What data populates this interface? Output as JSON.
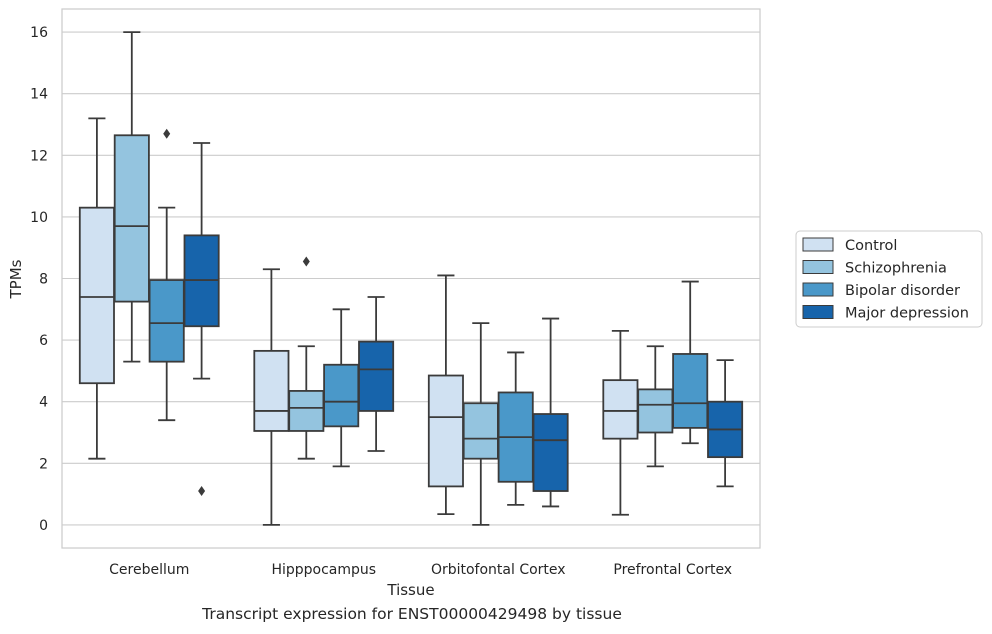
{
  "caption": "Transcript expression for ENST00000429498 by tissue",
  "chart_data": {
    "type": "box",
    "title": "",
    "xlabel": "Tissue",
    "ylabel": "TPMs",
    "categories": [
      "Cerebellum",
      "Hipppocampus",
      "Orbitofontal Cortex",
      "Prefrontal Cortex"
    ],
    "ylim": [
      -0.75,
      16.75
    ],
    "yticks": [
      0,
      2,
      4,
      6,
      8,
      10,
      12,
      14,
      16
    ],
    "grid": true,
    "legend_position": "right",
    "series": [
      {
        "name": "Control",
        "color": "#d0e1f2",
        "boxes": [
          {
            "whislo": 2.15,
            "q1": 4.6,
            "med": 7.4,
            "q3": 10.3,
            "whishi": 13.2,
            "fliers": []
          },
          {
            "whislo": 0.0,
            "q1": 3.05,
            "med": 3.7,
            "q3": 5.65,
            "whishi": 8.3,
            "fliers": []
          },
          {
            "whislo": 0.35,
            "q1": 1.25,
            "med": 3.5,
            "q3": 4.85,
            "whishi": 8.1,
            "fliers": []
          },
          {
            "whislo": 0.33,
            "q1": 2.8,
            "med": 3.7,
            "q3": 4.7,
            "whishi": 6.3,
            "fliers": []
          }
        ]
      },
      {
        "name": "Schizophrenia",
        "color": "#94c4df",
        "boxes": [
          {
            "whislo": 5.3,
            "q1": 7.25,
            "med": 9.7,
            "q3": 12.65,
            "whishi": 16.0,
            "fliers": []
          },
          {
            "whislo": 2.15,
            "q1": 3.05,
            "med": 3.8,
            "q3": 4.35,
            "whishi": 5.8,
            "fliers": [
              8.55
            ]
          },
          {
            "whislo": 0.0,
            "q1": 2.15,
            "med": 2.8,
            "q3": 3.95,
            "whishi": 6.55,
            "fliers": []
          },
          {
            "whislo": 1.9,
            "q1": 3.0,
            "med": 3.9,
            "q3": 4.4,
            "whishi": 5.8,
            "fliers": []
          }
        ]
      },
      {
        "name": "Bipolar disorder",
        "color": "#4a98c9",
        "boxes": [
          {
            "whislo": 3.4,
            "q1": 5.3,
            "med": 6.55,
            "q3": 7.95,
            "whishi": 10.3,
            "fliers": [
              12.7
            ]
          },
          {
            "whislo": 1.9,
            "q1": 3.2,
            "med": 4.0,
            "q3": 5.2,
            "whishi": 7.0,
            "fliers": []
          },
          {
            "whislo": 0.65,
            "q1": 1.4,
            "med": 2.85,
            "q3": 4.3,
            "whishi": 5.6,
            "fliers": []
          },
          {
            "whislo": 2.65,
            "q1": 3.15,
            "med": 3.95,
            "q3": 5.55,
            "whishi": 7.9,
            "fliers": []
          }
        ]
      },
      {
        "name": "Major depression",
        "color": "#1764ab",
        "boxes": [
          {
            "whislo": 4.75,
            "q1": 6.45,
            "med": 7.95,
            "q3": 9.4,
            "whishi": 12.4,
            "fliers": [
              1.1
            ]
          },
          {
            "whislo": 2.4,
            "q1": 3.7,
            "med": 5.05,
            "q3": 5.95,
            "whishi": 7.4,
            "fliers": []
          },
          {
            "whislo": 0.6,
            "q1": 1.1,
            "med": 2.75,
            "q3": 3.6,
            "whishi": 6.7,
            "fliers": []
          },
          {
            "whislo": 1.25,
            "q1": 2.2,
            "med": 3.1,
            "q3": 4.0,
            "whishi": 5.35,
            "fliers": []
          }
        ]
      }
    ]
  }
}
